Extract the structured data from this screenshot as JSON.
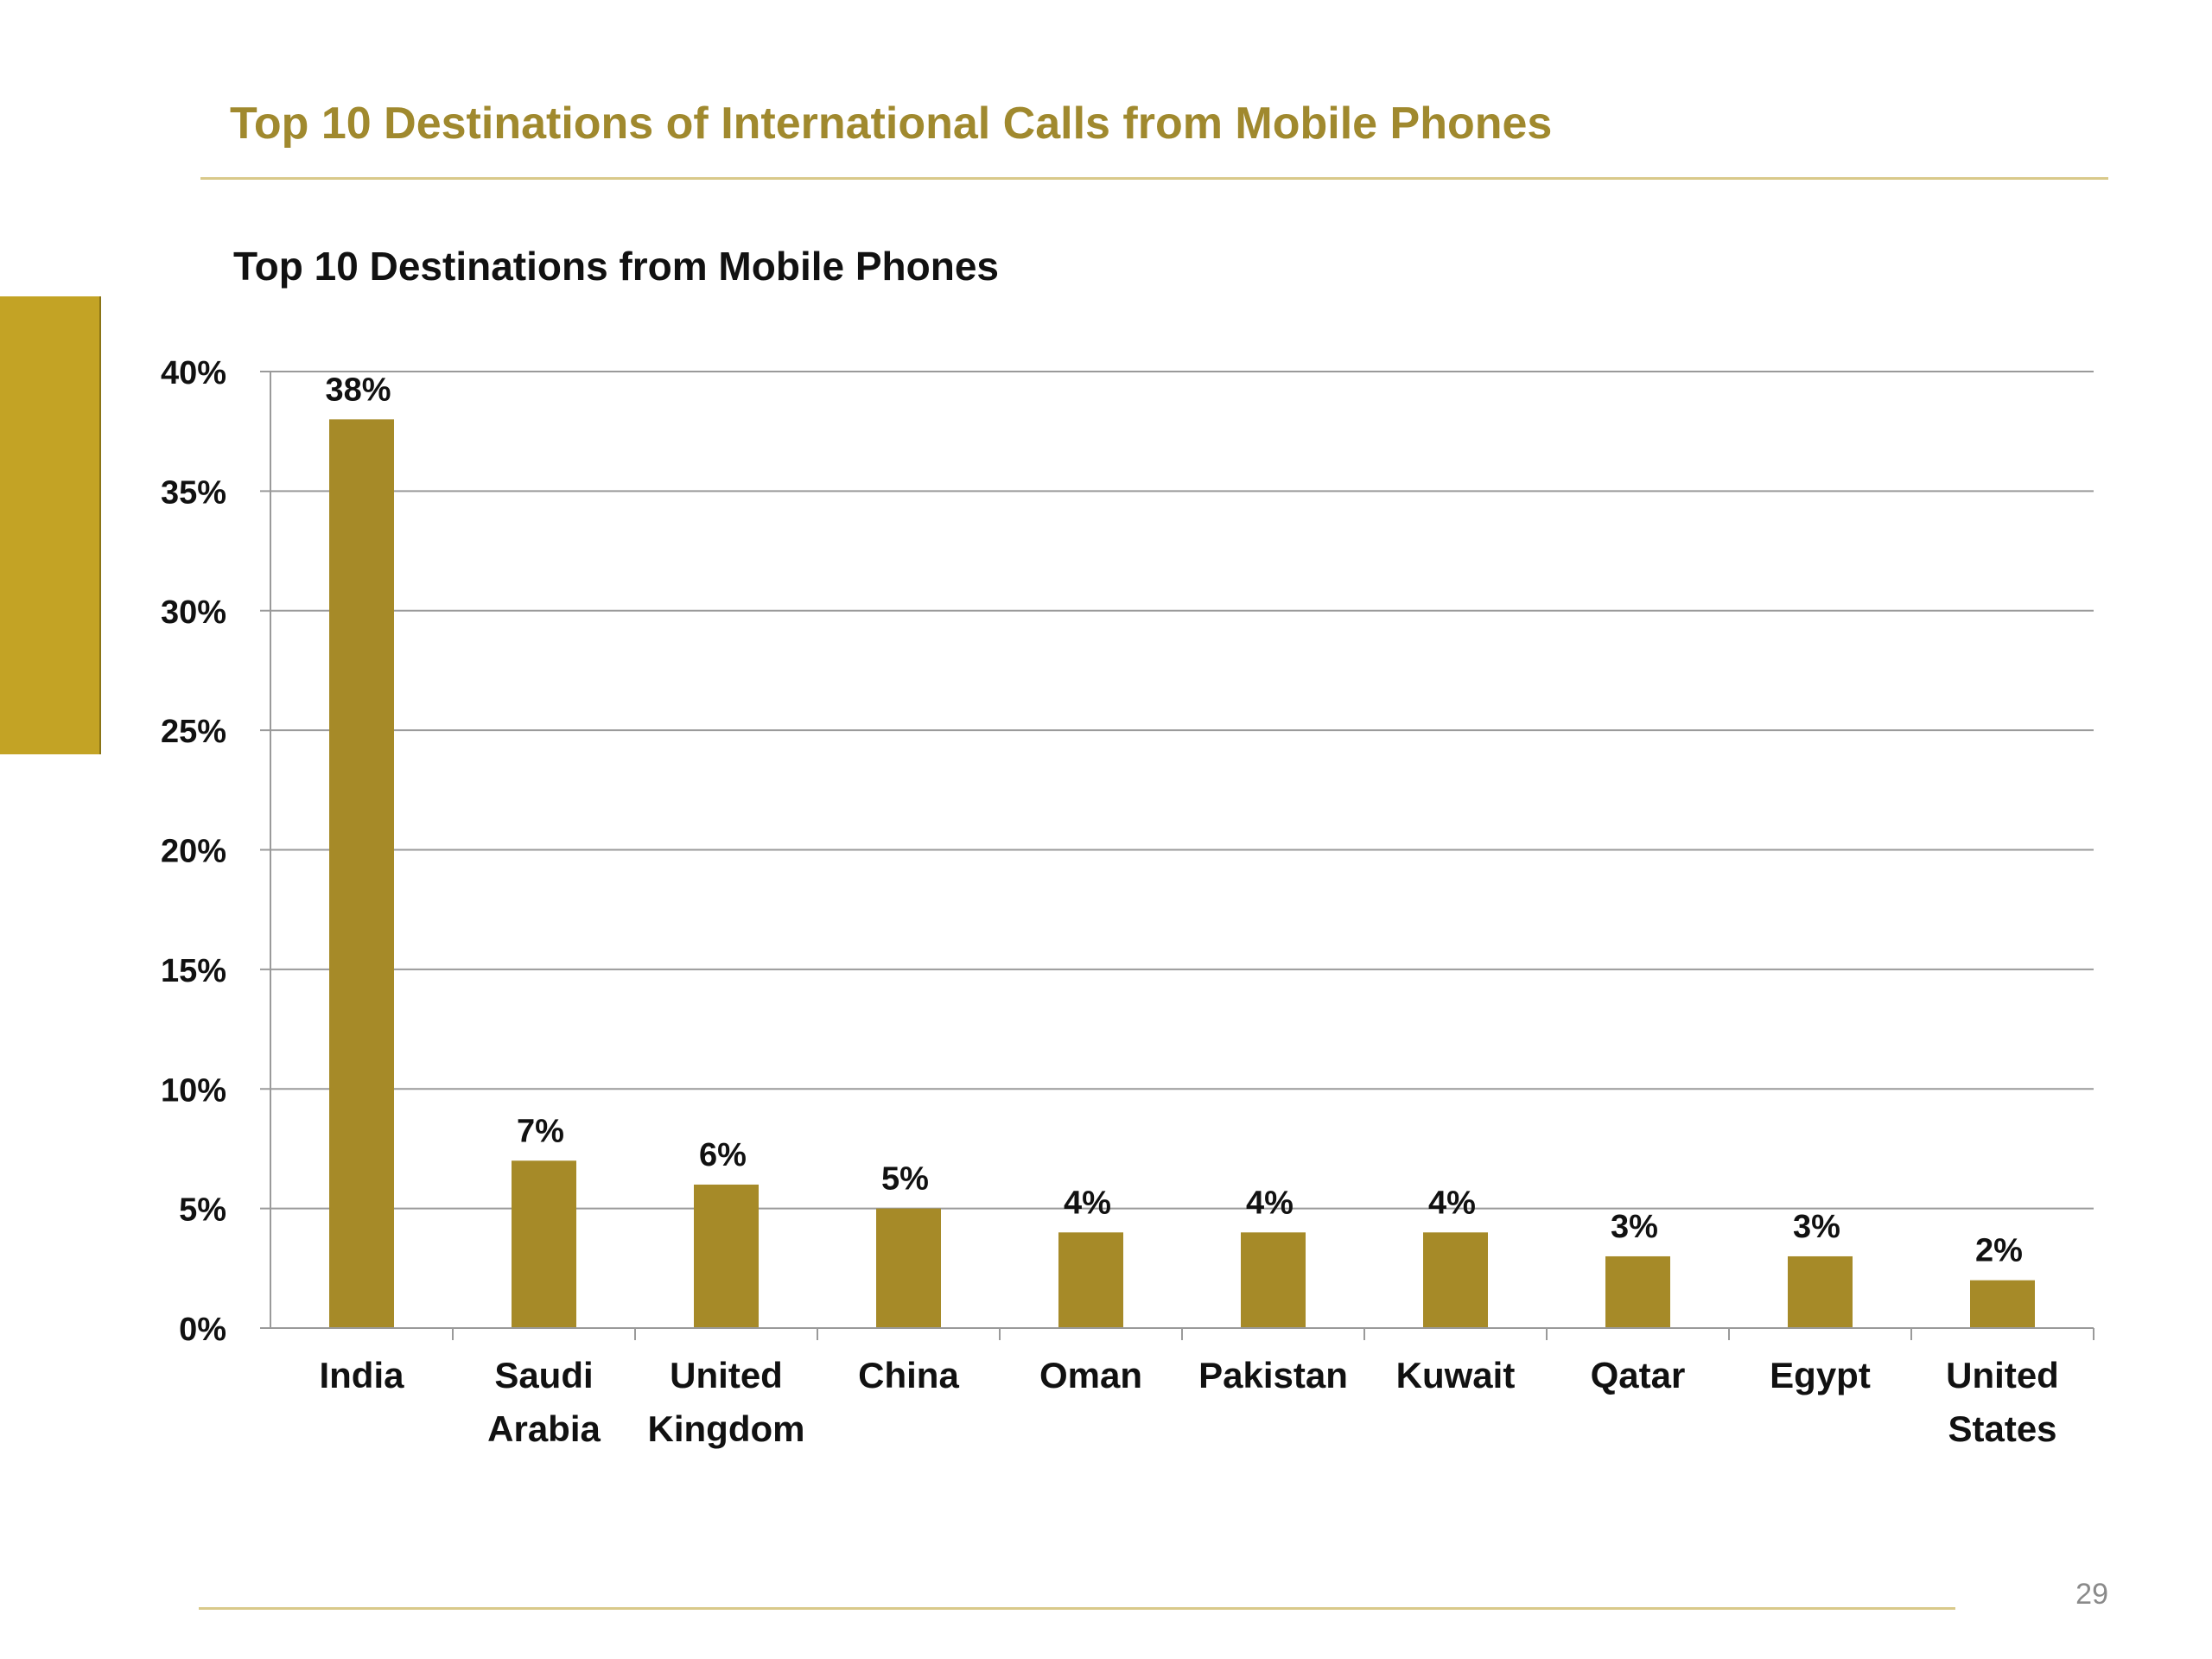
{
  "slide": {
    "title": "Top 10 Destinations of International  Calls  from Mobile Phones",
    "page_number": "29"
  },
  "colors": {
    "bar": "#A68A28",
    "title": "#A0892E",
    "accent_block": "#C3A325",
    "rule": "#D9C98A",
    "gridline": "#9a9a9a",
    "text": "#111111"
  },
  "chart_data": {
    "type": "bar",
    "title": "Top 10 Destinations from Mobile Phones",
    "xlabel": "",
    "ylabel": "",
    "categories": [
      "India",
      "Saudi Arabia",
      "United Kingdom",
      "China",
      "Oman",
      "Pakistan",
      "Kuwait",
      "Qatar",
      "Egypt",
      "United States"
    ],
    "category_lines": [
      [
        "India"
      ],
      [
        "Saudi",
        "Arabia"
      ],
      [
        "United",
        "Kingdom"
      ],
      [
        "China"
      ],
      [
        "Oman"
      ],
      [
        "Pakistan"
      ],
      [
        "Kuwait"
      ],
      [
        "Qatar"
      ],
      [
        "Egypt"
      ],
      [
        "United",
        "States"
      ]
    ],
    "values": [
      38,
      7,
      6,
      5,
      4,
      4,
      4,
      3,
      3,
      2
    ],
    "data_labels": [
      "38%",
      "7%",
      "6%",
      "5%",
      "4%",
      "4%",
      "4%",
      "3%",
      "3%",
      "2%"
    ],
    "ylim": [
      0,
      40
    ],
    "yticks": [
      0,
      5,
      10,
      15,
      20,
      25,
      30,
      35,
      40
    ],
    "ytick_labels": [
      "0%",
      "5%",
      "10%",
      "15%",
      "20%",
      "25%",
      "30%",
      "35%",
      "40%"
    ],
    "grid": true,
    "legend": "none"
  }
}
